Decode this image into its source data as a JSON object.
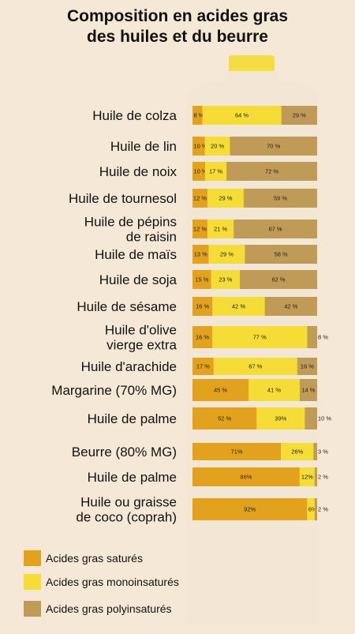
{
  "title_lines": [
    "Composition en acides gras",
    "des huiles et du beurre"
  ],
  "colors": {
    "sat": "#e3a21d",
    "mono": "#f6dc36",
    "poly": "#bf9b57"
  },
  "chart_data": {
    "type": "bar",
    "orientation": "horizontal",
    "stacked": true,
    "title": "Composition en acides gras des huiles et du beurre",
    "categories": [
      "Huile de colza",
      "Huile de lin",
      "Huile de noix",
      "Huile de tournesol",
      "Huile de pépins de raisin",
      "Huile de maïs",
      "Huile de soja",
      "Huile de sésame",
      "Huile d'olive vierge extra",
      "Huile d'arachide",
      "Margarine (70% MG)",
      "Huile de palme",
      "Beurre (80% MG)",
      "Huile de palme",
      "Huile ou graisse de coco (coprah)"
    ],
    "category_lines": [
      [
        "Huile de colza"
      ],
      [
        "Huile de lin"
      ],
      [
        "Huile de noix"
      ],
      [
        "Huile de tournesol"
      ],
      [
        "Huile de pépins",
        "de raisin"
      ],
      [
        "Huile de maïs"
      ],
      [
        "Huile de soja"
      ],
      [
        "Huile de sésame"
      ],
      [
        "Huile d'olive",
        "vierge extra"
      ],
      [
        "Huile d'arachide"
      ],
      [
        "Margarine (70% MG)"
      ],
      [
        "Huile de palme"
      ],
      [
        "Beurre (80% MG)"
      ],
      [
        "Huile de palme"
      ],
      [
        "Huile ou graisse",
        "de coco (coprah)"
      ]
    ],
    "series": [
      {
        "name": "Acides gras saturés",
        "key": "sat",
        "values": [
          8,
          10,
          10,
          12,
          12,
          13,
          15,
          16,
          16,
          17,
          45,
          52,
          71,
          86,
          92
        ],
        "labels": [
          "8 %",
          "10 %",
          "10 %",
          "12 %",
          "12 %",
          "13 %",
          "15 %",
          "16 %",
          "16 %",
          "17 %",
          "45 %",
          "52 %",
          "71%",
          "86%",
          "92%"
        ]
      },
      {
        "name": "Acides gras monoinsaturés",
        "key": "mono",
        "values": [
          64,
          20,
          17,
          29,
          21,
          29,
          23,
          42,
          77,
          67,
          41,
          39,
          26,
          12,
          6
        ],
        "labels": [
          "64 %",
          "20 %",
          "17 %",
          "29 %",
          "21 %",
          "29 %",
          "23 %",
          "42 %",
          "77 %",
          "67 %",
          "41 %",
          "39%",
          "26%",
          "12%",
          "6%"
        ]
      },
      {
        "name": "Acides gras polyinsaturés",
        "key": "poly",
        "values": [
          29,
          70,
          72,
          59,
          67,
          58,
          62,
          42,
          8,
          16,
          14,
          10,
          3,
          2,
          2
        ],
        "labels": [
          "29 %",
          "70 %",
          "72 %",
          "59 %",
          "67 %",
          "58 %",
          "62 %",
          "42 %",
          "8 %",
          "16 %",
          "14 %",
          "10 %",
          "3 %",
          "2 %",
          "2 %"
        ]
      }
    ],
    "xlim": [
      0,
      100
    ],
    "unit": "%",
    "legend": {
      "position": "bottom-left",
      "items": [
        "Acides gras saturés",
        "Acides gras monoinsaturés",
        "Acides gras polyinsaturés"
      ]
    }
  }
}
